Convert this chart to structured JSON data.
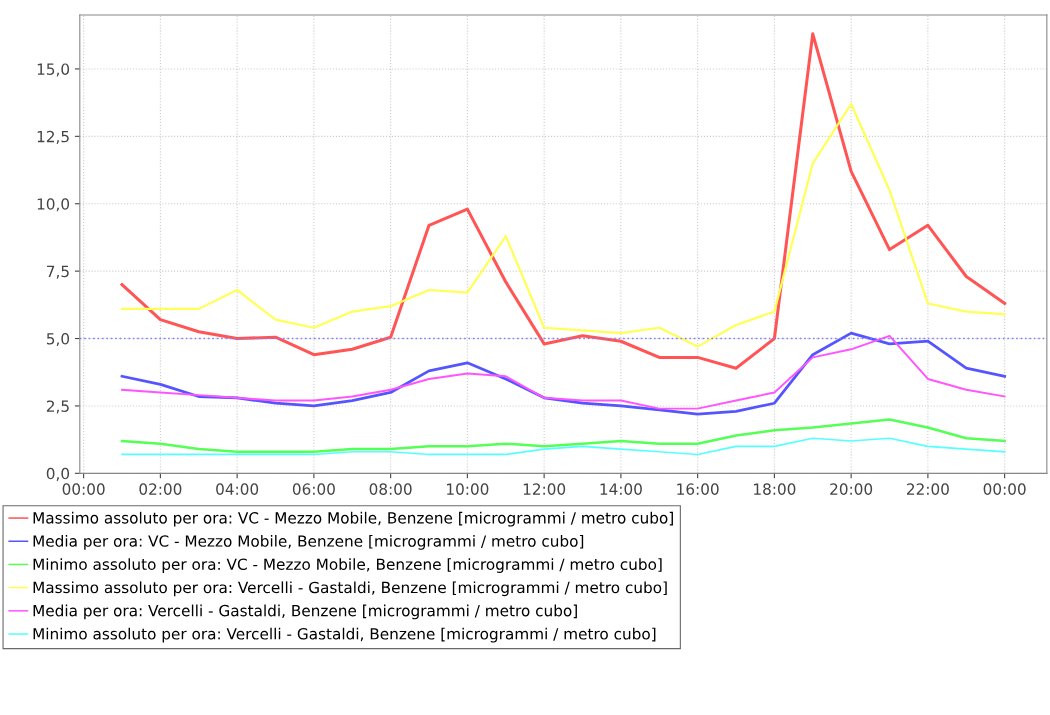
{
  "chart_data": {
    "type": "line",
    "x": [
      1,
      2,
      3,
      4,
      5,
      6,
      7,
      8,
      9,
      10,
      11,
      12,
      13,
      14,
      15,
      16,
      17,
      18,
      19,
      20,
      21,
      22,
      23,
      24
    ],
    "xlim": [
      -0.1,
      25.1
    ],
    "xticks": [
      {
        "value": 0,
        "label": "00:00"
      },
      {
        "value": 2,
        "label": "02:00"
      },
      {
        "value": 4,
        "label": "04:00"
      },
      {
        "value": 6,
        "label": "06:00"
      },
      {
        "value": 8,
        "label": "08:00"
      },
      {
        "value": 10,
        "label": "10:00"
      },
      {
        "value": 12,
        "label": "12:00"
      },
      {
        "value": 14,
        "label": "14:00"
      },
      {
        "value": 16,
        "label": "16:00"
      },
      {
        "value": 18,
        "label": "18:00"
      },
      {
        "value": 20,
        "label": "20:00"
      },
      {
        "value": 22,
        "label": "22:00"
      },
      {
        "value": 24,
        "label": "00:00"
      }
    ],
    "ylim": [
      0,
      17
    ],
    "yticks": [
      {
        "value": 0,
        "label": "0,0"
      },
      {
        "value": 2.5,
        "label": "2,5"
      },
      {
        "value": 5,
        "label": "5,0"
      },
      {
        "value": 7.5,
        "label": "7,5"
      },
      {
        "value": 10,
        "label": "10,0"
      },
      {
        "value": 12.5,
        "label": "12,5"
      },
      {
        "value": 15,
        "label": "15,0"
      }
    ],
    "grid": true,
    "legend": "bottom",
    "marker": "none",
    "line_style": "solid",
    "ref_lines": [
      {
        "axis": "y",
        "value": 5.0,
        "color": "#8080ff",
        "line_style": "dotted"
      }
    ],
    "series": [
      {
        "name": "Massimo assoluto per ora: VC - Mezzo Mobile, Benzene [microgrammi / metro cubo]",
        "color": "#ff5555",
        "values": [
          7.0,
          5.7,
          5.25,
          5.0,
          5.05,
          4.4,
          4.6,
          5.05,
          9.2,
          9.8,
          7.1,
          4.8,
          5.1,
          4.9,
          4.3,
          4.3,
          3.9,
          5.0,
          16.3,
          11.2,
          8.3,
          9.2,
          7.3,
          6.3
        ]
      },
      {
        "name": "Media per ora: VC - Mezzo Mobile, Benzene [microgrammi / metro cubo]",
        "color": "#5555ff",
        "values": [
          3.6,
          3.3,
          2.85,
          2.8,
          2.6,
          2.5,
          2.7,
          3.0,
          3.8,
          4.1,
          3.5,
          2.8,
          2.6,
          2.5,
          2.35,
          2.2,
          2.3,
          2.6,
          4.4,
          5.2,
          4.8,
          4.9,
          3.9,
          3.6
        ]
      },
      {
        "name": "Minimo assoluto per ora: VC - Mezzo Mobile, Benzene [microgrammi / metro cubo]",
        "color": "#55ff55",
        "values": [
          1.2,
          1.1,
          0.9,
          0.8,
          0.8,
          0.8,
          0.9,
          0.9,
          1.0,
          1.0,
          1.1,
          1.0,
          1.1,
          1.2,
          1.1,
          1.1,
          1.4,
          1.6,
          1.7,
          1.85,
          2.0,
          1.7,
          1.3,
          1.2
        ]
      },
      {
        "name": "Massimo assoluto per ora: Vercelli - Gastaldi, Benzene [microgrammi / metro cubo]",
        "color": "#ffff55",
        "values": [
          6.1,
          6.1,
          6.1,
          6.8,
          5.7,
          5.4,
          6.0,
          6.2,
          6.8,
          6.7,
          8.8,
          5.4,
          5.3,
          5.2,
          5.4,
          4.7,
          5.5,
          6.0,
          11.5,
          13.7,
          10.5,
          6.3,
          6.0,
          5.9
        ]
      },
      {
        "name": "Media per ora: Vercelli - Gastaldi, Benzene [microgrammi / metro cubo]",
        "color": "#ff55ff",
        "values": [
          3.1,
          3.0,
          2.9,
          2.8,
          2.7,
          2.7,
          2.85,
          3.1,
          3.5,
          3.7,
          3.6,
          2.8,
          2.7,
          2.7,
          2.4,
          2.4,
          2.7,
          3.0,
          4.3,
          4.6,
          5.1,
          3.5,
          3.1,
          2.85
        ]
      },
      {
        "name": "Minimo assoluto per ora: Vercelli - Gastaldi, Benzene [microgrammi / metro cubo]",
        "color": "#55ffff",
        "values": [
          0.7,
          0.7,
          0.7,
          0.7,
          0.7,
          0.7,
          0.8,
          0.8,
          0.7,
          0.7,
          0.7,
          0.9,
          1.0,
          0.9,
          0.8,
          0.7,
          1.0,
          1.0,
          1.3,
          1.2,
          1.3,
          1.0,
          0.9,
          0.8
        ]
      }
    ]
  }
}
